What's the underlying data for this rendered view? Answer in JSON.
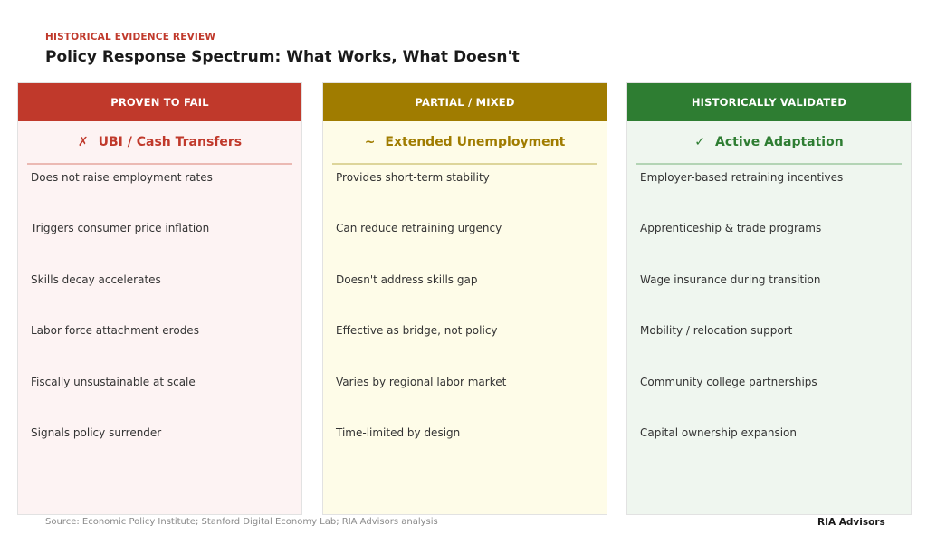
{
  "header": {
    "eyebrow": "HISTORICAL EVIDENCE REVIEW",
    "title": "Policy Response Spectrum: What Works, What Doesn't"
  },
  "columns": [
    {
      "header": "PROVEN TO FAIL",
      "symbol": "✗",
      "subtitle": "UBI / Cash Transfers",
      "color": "#c0392b",
      "bg": "#fdf3f3",
      "rule": "#ebb9b3",
      "items": [
        "Does not raise employment rates",
        "Triggers consumer price inflation",
        "Skills decay accelerates",
        "Labor force attachment erodes",
        "Fiscally unsustainable at scale",
        "Signals policy surrender"
      ]
    },
    {
      "header": "PARTIAL / MIXED",
      "symbol": "~",
      "subtitle": "Extended Unemployment",
      "color": "#a07c00",
      "bg": "#fefce8",
      "rule": "#ddd59a",
      "items": [
        "Provides short-term stability",
        "Can reduce retraining urgency",
        "Doesn't address skills gap",
        "Effective as bridge, not policy",
        "Varies by regional labor market",
        "Time-limited by design"
      ]
    },
    {
      "header": "HISTORICALLY VALIDATED",
      "symbol": "✓",
      "subtitle": "Active Adaptation",
      "color": "#2e7d32",
      "bg": "#eff6ef",
      "rule": "#b3d4b5",
      "items": [
        "Employer-based retraining incentives",
        "Apprenticeship & trade programs",
        "Wage insurance during transition",
        "Mobility / relocation support",
        "Community college partnerships",
        "Capital ownership expansion"
      ]
    }
  ],
  "footer": {
    "source": "Source: Economic Policy Institute; Stanford Digital Economy Lab; RIA Advisors analysis",
    "brand": "RIA Advisors"
  }
}
